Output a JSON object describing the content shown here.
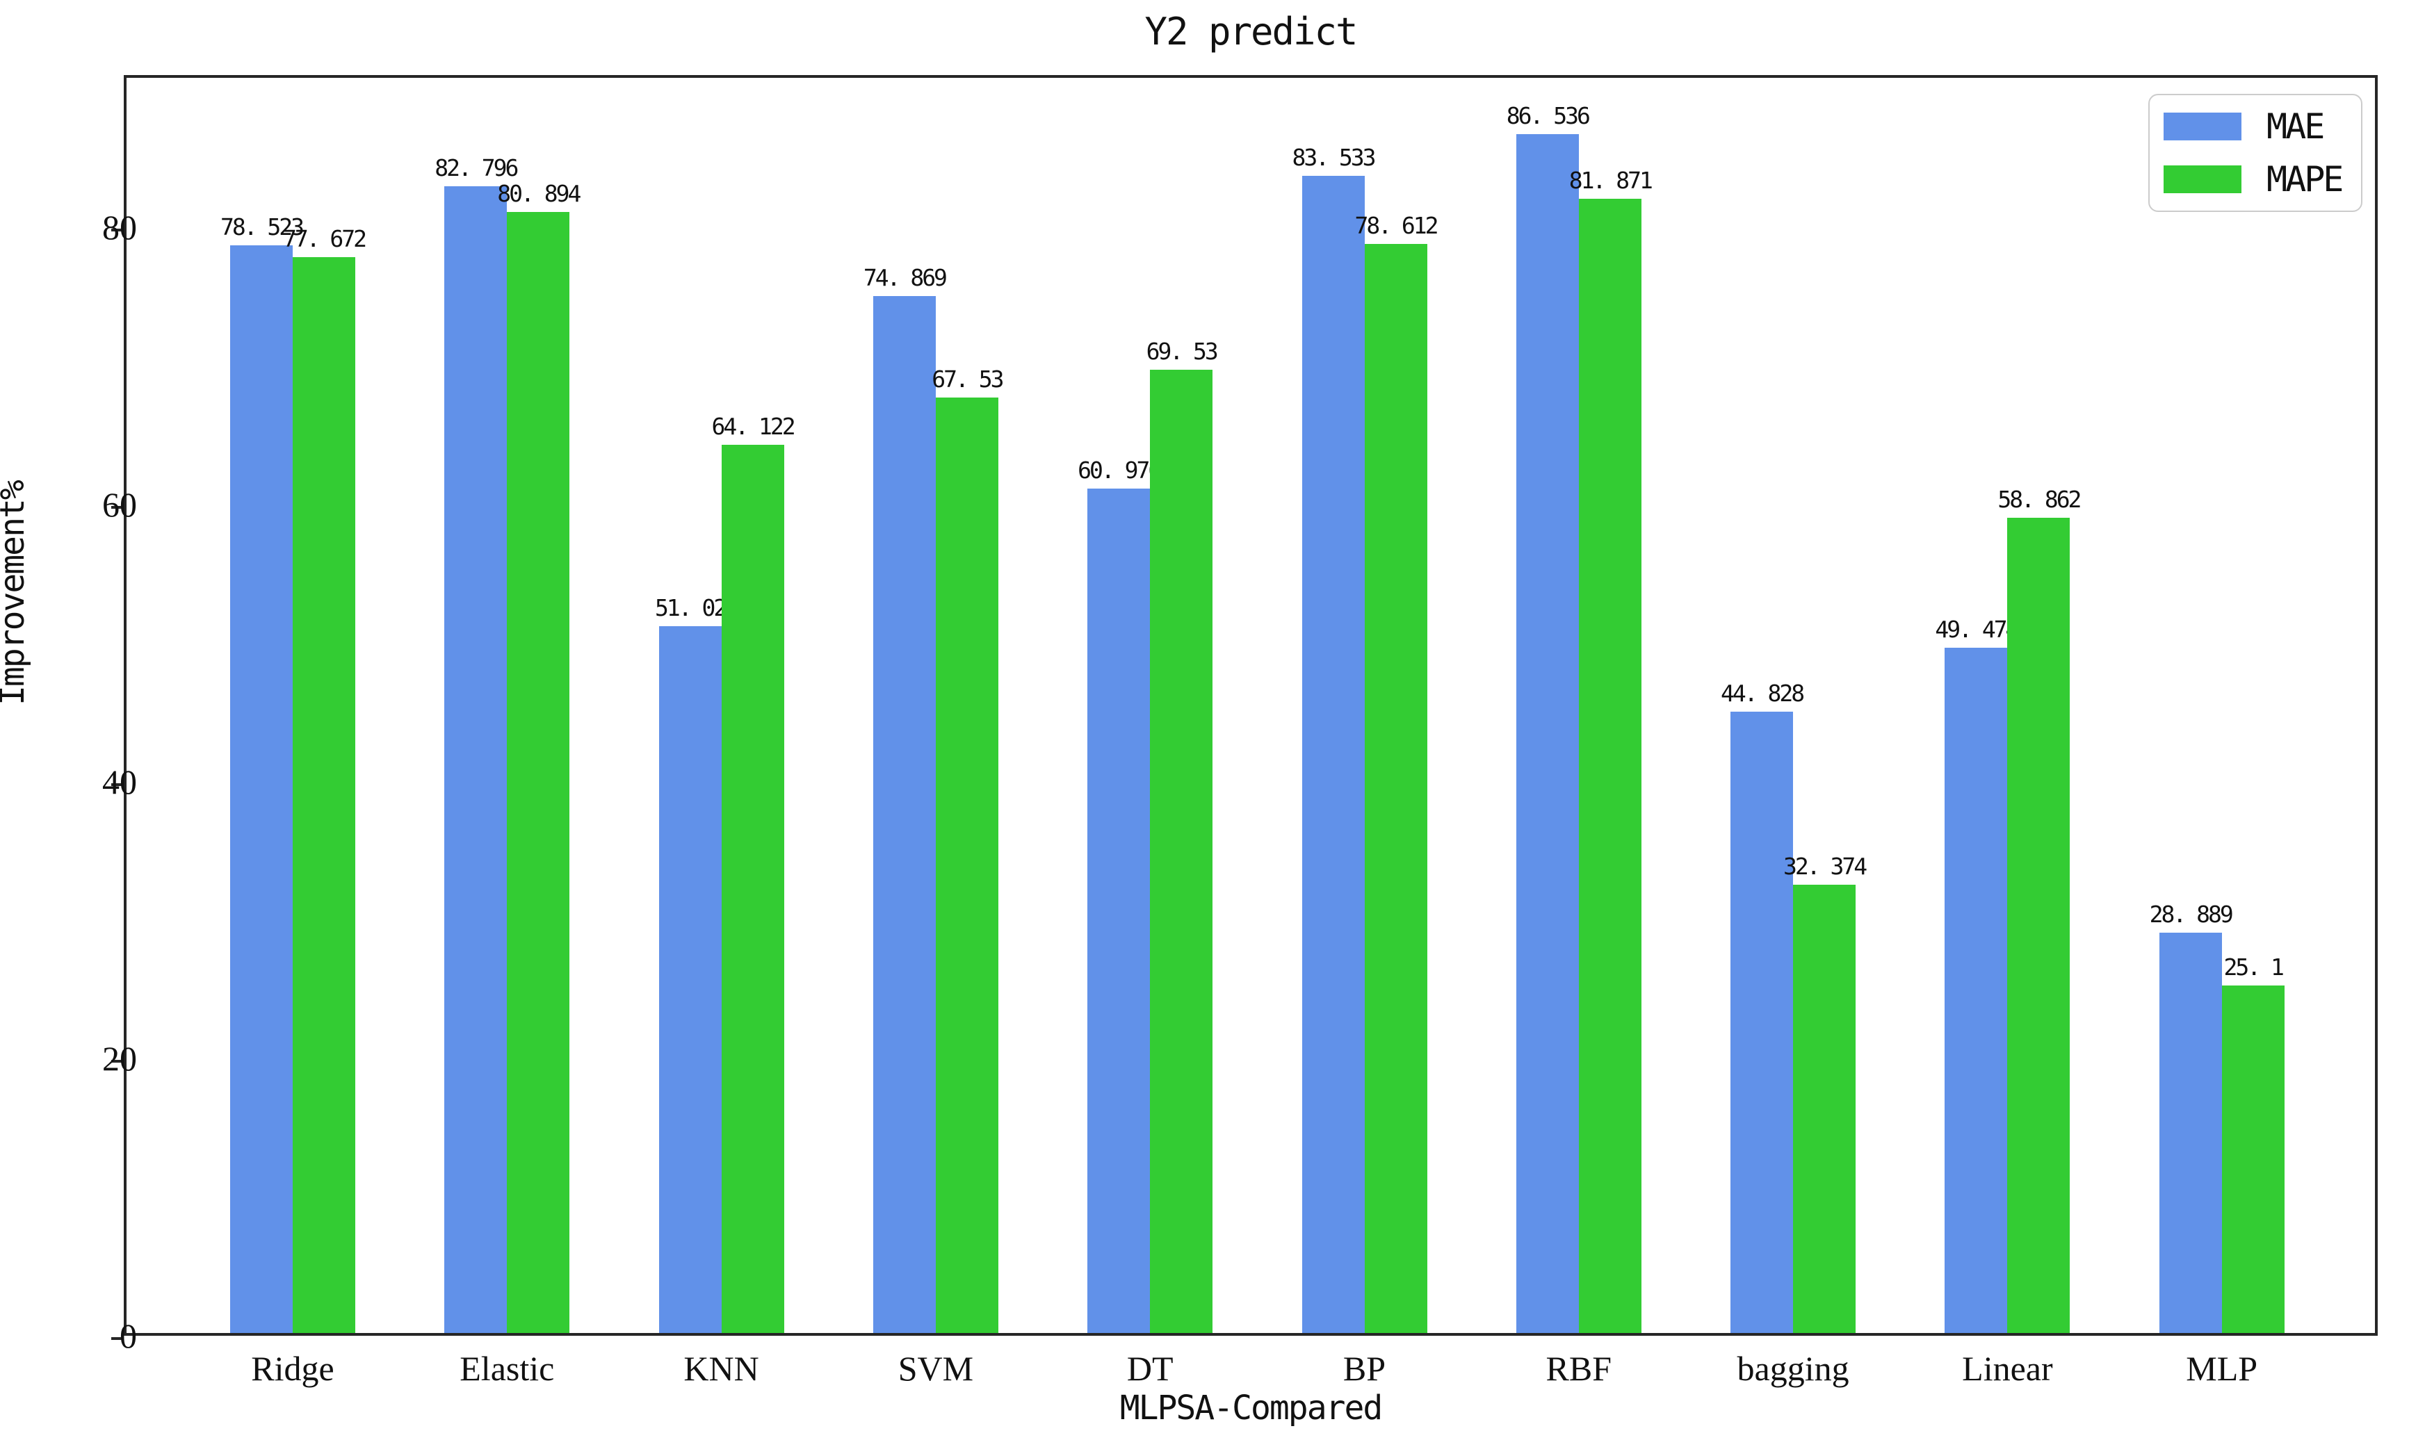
{
  "chart_data": {
    "type": "bar",
    "title": "Y2 predict",
    "xlabel": "MLPSA-Compared",
    "ylabel": "Improvement%",
    "categories": [
      "Ridge",
      "Elastic",
      "KNN",
      "SVM",
      "DT",
      "BP",
      "RBF",
      "bagging",
      "Linear",
      "MLP"
    ],
    "series": [
      {
        "name": "MAE",
        "color": "#6191E9",
        "values": [
          78.523,
          82.796,
          51.02,
          74.869,
          60.976,
          83.533,
          86.536,
          44.828,
          49.474,
          28.889
        ],
        "labels": [
          "78. 523",
          "82. 796",
          "51. 02",
          "74. 869",
          "60. 976",
          "83. 533",
          "86. 536",
          "44. 828",
          "49. 474",
          "28. 889"
        ]
      },
      {
        "name": "MAPE",
        "color": "#33CC33",
        "values": [
          77.672,
          80.894,
          64.122,
          67.53,
          69.53,
          78.612,
          81.871,
          32.374,
          58.862,
          25.1
        ],
        "labels": [
          "77. 672",
          "80. 894",
          "64. 122",
          "67. 53",
          "69. 53",
          "78. 612",
          "81. 871",
          "32. 374",
          "58. 862",
          "25. 1"
        ]
      }
    ],
    "ylim": [
      0,
      91
    ],
    "yticks": [
      0,
      20,
      40,
      60,
      80
    ],
    "grid": false,
    "legend_position": "upper right",
    "axis_color": "#262626",
    "text_color": "#111111"
  }
}
